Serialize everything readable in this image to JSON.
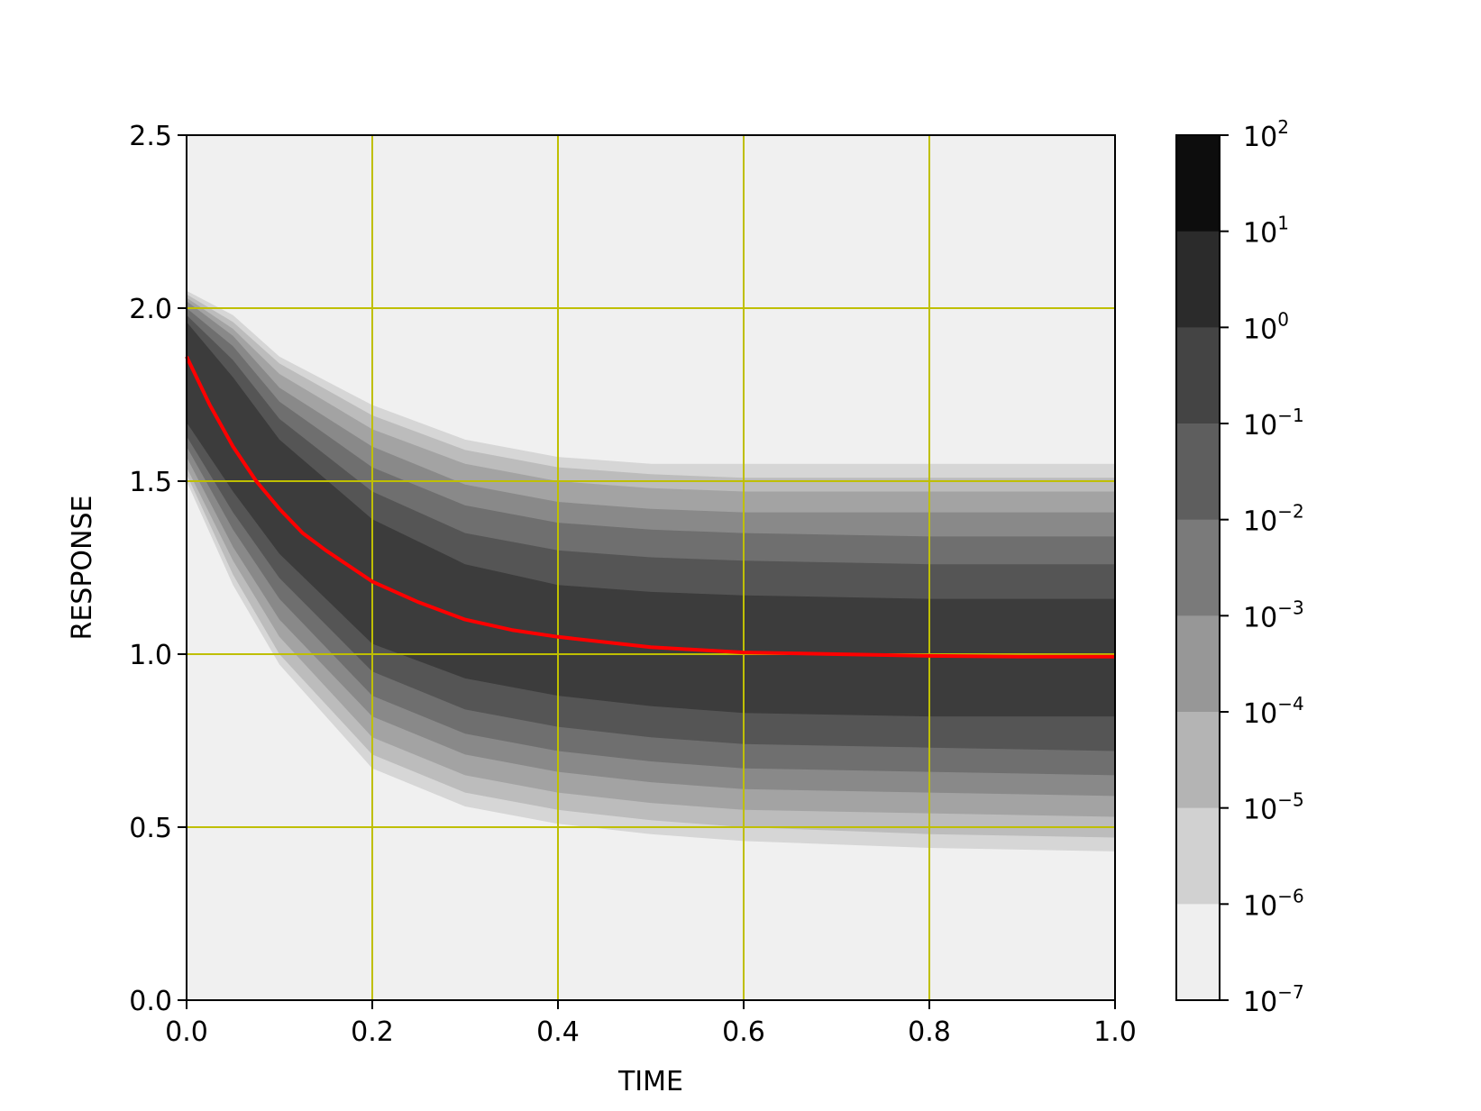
{
  "chart_data": {
    "type": "heatmap",
    "xlabel": "TIME",
    "ylabel": "RESPONSE",
    "xlim": [
      0.0,
      1.0
    ],
    "ylim": [
      0.0,
      2.5
    ],
    "x_ticks": [
      "0.0",
      "0.2",
      "0.4",
      "0.6",
      "0.8",
      "1.0"
    ],
    "y_ticks": [
      "0.0",
      "0.5",
      "1.0",
      "1.5",
      "2.0",
      "2.5"
    ],
    "grid": true,
    "grid_color": "#bfbf00",
    "line_color": "#ff0000",
    "background_color": "#f0f0f0",
    "mean_response": {
      "x": [
        0.0,
        0.025,
        0.05,
        0.075,
        0.1,
        0.125,
        0.15,
        0.2,
        0.25,
        0.3,
        0.35,
        0.4,
        0.5,
        0.6,
        0.7,
        0.8,
        0.9,
        1.0
      ],
      "y": [
        1.86,
        1.72,
        1.6,
        1.5,
        1.42,
        1.35,
        1.3,
        1.21,
        1.15,
        1.1,
        1.07,
        1.05,
        1.02,
        1.005,
        1.0,
        0.995,
        0.993,
        0.993
      ]
    },
    "density_bands": {
      "x": [
        0.0,
        0.05,
        0.1,
        0.2,
        0.3,
        0.4,
        0.5,
        0.6,
        0.8,
        1.0
      ],
      "levels": [
        {
          "color": "#d6d6d6",
          "upper": [
            2.05,
            1.98,
            1.86,
            1.72,
            1.62,
            1.57,
            1.55,
            1.55,
            1.55,
            1.55
          ],
          "lower": [
            1.5,
            1.2,
            0.97,
            0.67,
            0.56,
            0.51,
            0.48,
            0.46,
            0.44,
            0.43
          ]
        },
        {
          "color": "#bcbcbc",
          "upper": [
            2.04,
            1.96,
            1.84,
            1.69,
            1.59,
            1.54,
            1.52,
            1.51,
            1.51,
            1.51
          ],
          "lower": [
            1.52,
            1.23,
            1.0,
            0.71,
            0.6,
            0.55,
            0.52,
            0.5,
            0.48,
            0.47
          ]
        },
        {
          "color": "#a3a3a3",
          "upper": [
            2.03,
            1.94,
            1.81,
            1.65,
            1.55,
            1.5,
            1.48,
            1.47,
            1.47,
            1.47
          ],
          "lower": [
            1.54,
            1.27,
            1.05,
            0.76,
            0.65,
            0.6,
            0.57,
            0.55,
            0.54,
            0.53
          ]
        },
        {
          "color": "#898989",
          "upper": [
            2.02,
            1.92,
            1.77,
            1.6,
            1.49,
            1.44,
            1.42,
            1.41,
            1.41,
            1.41
          ],
          "lower": [
            1.57,
            1.31,
            1.1,
            0.82,
            0.71,
            0.66,
            0.63,
            0.61,
            0.6,
            0.59
          ]
        },
        {
          "color": "#6f6f6f",
          "upper": [
            2.0,
            1.89,
            1.73,
            1.54,
            1.43,
            1.38,
            1.36,
            1.35,
            1.34,
            1.34
          ],
          "lower": [
            1.6,
            1.36,
            1.16,
            0.88,
            0.77,
            0.72,
            0.69,
            0.67,
            0.66,
            0.65
          ]
        },
        {
          "color": "#555555",
          "upper": [
            1.98,
            1.85,
            1.68,
            1.47,
            1.35,
            1.3,
            1.28,
            1.27,
            1.26,
            1.26
          ],
          "lower": [
            1.63,
            1.41,
            1.22,
            0.95,
            0.84,
            0.79,
            0.76,
            0.74,
            0.73,
            0.72
          ]
        },
        {
          "color": "#3c3c3c",
          "upper": [
            1.96,
            1.8,
            1.62,
            1.39,
            1.26,
            1.2,
            1.18,
            1.17,
            1.16,
            1.16
          ],
          "lower": [
            1.67,
            1.47,
            1.29,
            1.03,
            0.93,
            0.88,
            0.85,
            0.83,
            0.82,
            0.82
          ]
        }
      ]
    },
    "colorbar": {
      "scale": "log",
      "range": [
        1e-07,
        100
      ],
      "ticks": [
        {
          "base": "10",
          "exp": "2"
        },
        {
          "base": "10",
          "exp": "1"
        },
        {
          "base": "10",
          "exp": "0"
        },
        {
          "base": "10",
          "exp": "−1"
        },
        {
          "base": "10",
          "exp": "−2"
        },
        {
          "base": "10",
          "exp": "−3"
        },
        {
          "base": "10",
          "exp": "−4"
        },
        {
          "base": "10",
          "exp": "−5"
        },
        {
          "base": "10",
          "exp": "−6"
        },
        {
          "base": "10",
          "exp": "−7"
        }
      ],
      "colors": [
        "#0d0d0d",
        "#2b2b2b",
        "#444444",
        "#5e5e5e",
        "#7a7a7a",
        "#979797",
        "#b4b4b4",
        "#d1d1d1",
        "#efefef"
      ]
    }
  }
}
